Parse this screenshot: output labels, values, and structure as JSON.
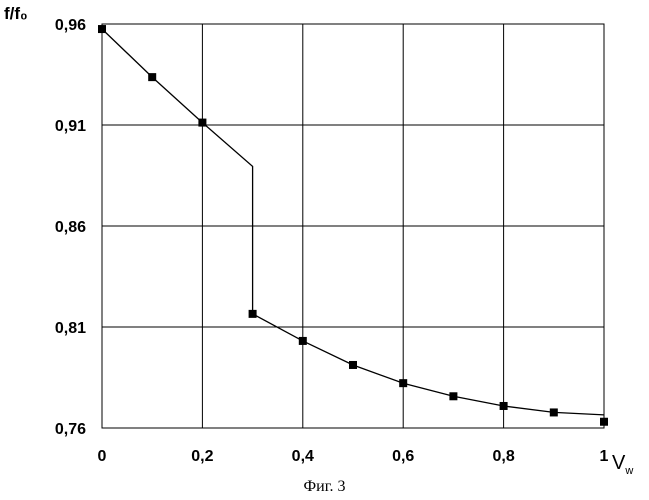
{
  "caption": "Фиг. 3",
  "chart_data": {
    "type": "line",
    "ylabel": "f/f₀",
    "xlabel": "Vw",
    "xlim": [
      0,
      1
    ],
    "ylim": [
      0.76,
      0.96
    ],
    "grid": true,
    "x_ticks": [
      0,
      0.2,
      0.4,
      0.6,
      0.8,
      1
    ],
    "x_tick_labels": [
      "0",
      "0,2",
      "0,4",
      "0,6",
      "0,8",
      "1"
    ],
    "y_ticks": [
      0.76,
      0.81,
      0.86,
      0.91,
      0.96
    ],
    "y_tick_labels": [
      "0,76",
      "0,81",
      "0,86",
      "0,91",
      "0,96"
    ],
    "series": [
      {
        "line": [
          [
            0,
            0.9575
          ],
          [
            0.1,
            0.9337
          ],
          [
            0.2,
            0.9112
          ],
          [
            0.3,
            0.8895
          ],
          [
            0.3,
            0.8165
          ],
          [
            0.4,
            0.8031
          ],
          [
            0.5,
            0.7912
          ],
          [
            0.6,
            0.7822
          ],
          [
            0.7,
            0.7757
          ],
          [
            0.8,
            0.7709
          ],
          [
            0.9,
            0.7677
          ],
          [
            1,
            0.7665
          ]
        ],
        "markers": [
          [
            0,
            0.9575
          ],
          [
            0.1,
            0.9337
          ],
          [
            0.2,
            0.9112
          ],
          [
            0.3,
            0.8165
          ],
          [
            0.4,
            0.8031
          ],
          [
            0.5,
            0.7912
          ],
          [
            0.6,
            0.7822
          ],
          [
            0.7,
            0.7757
          ],
          [
            0.8,
            0.7709
          ],
          [
            0.9,
            0.7677
          ],
          [
            1,
            0.7631
          ]
        ],
        "color": "#000000"
      }
    ]
  }
}
